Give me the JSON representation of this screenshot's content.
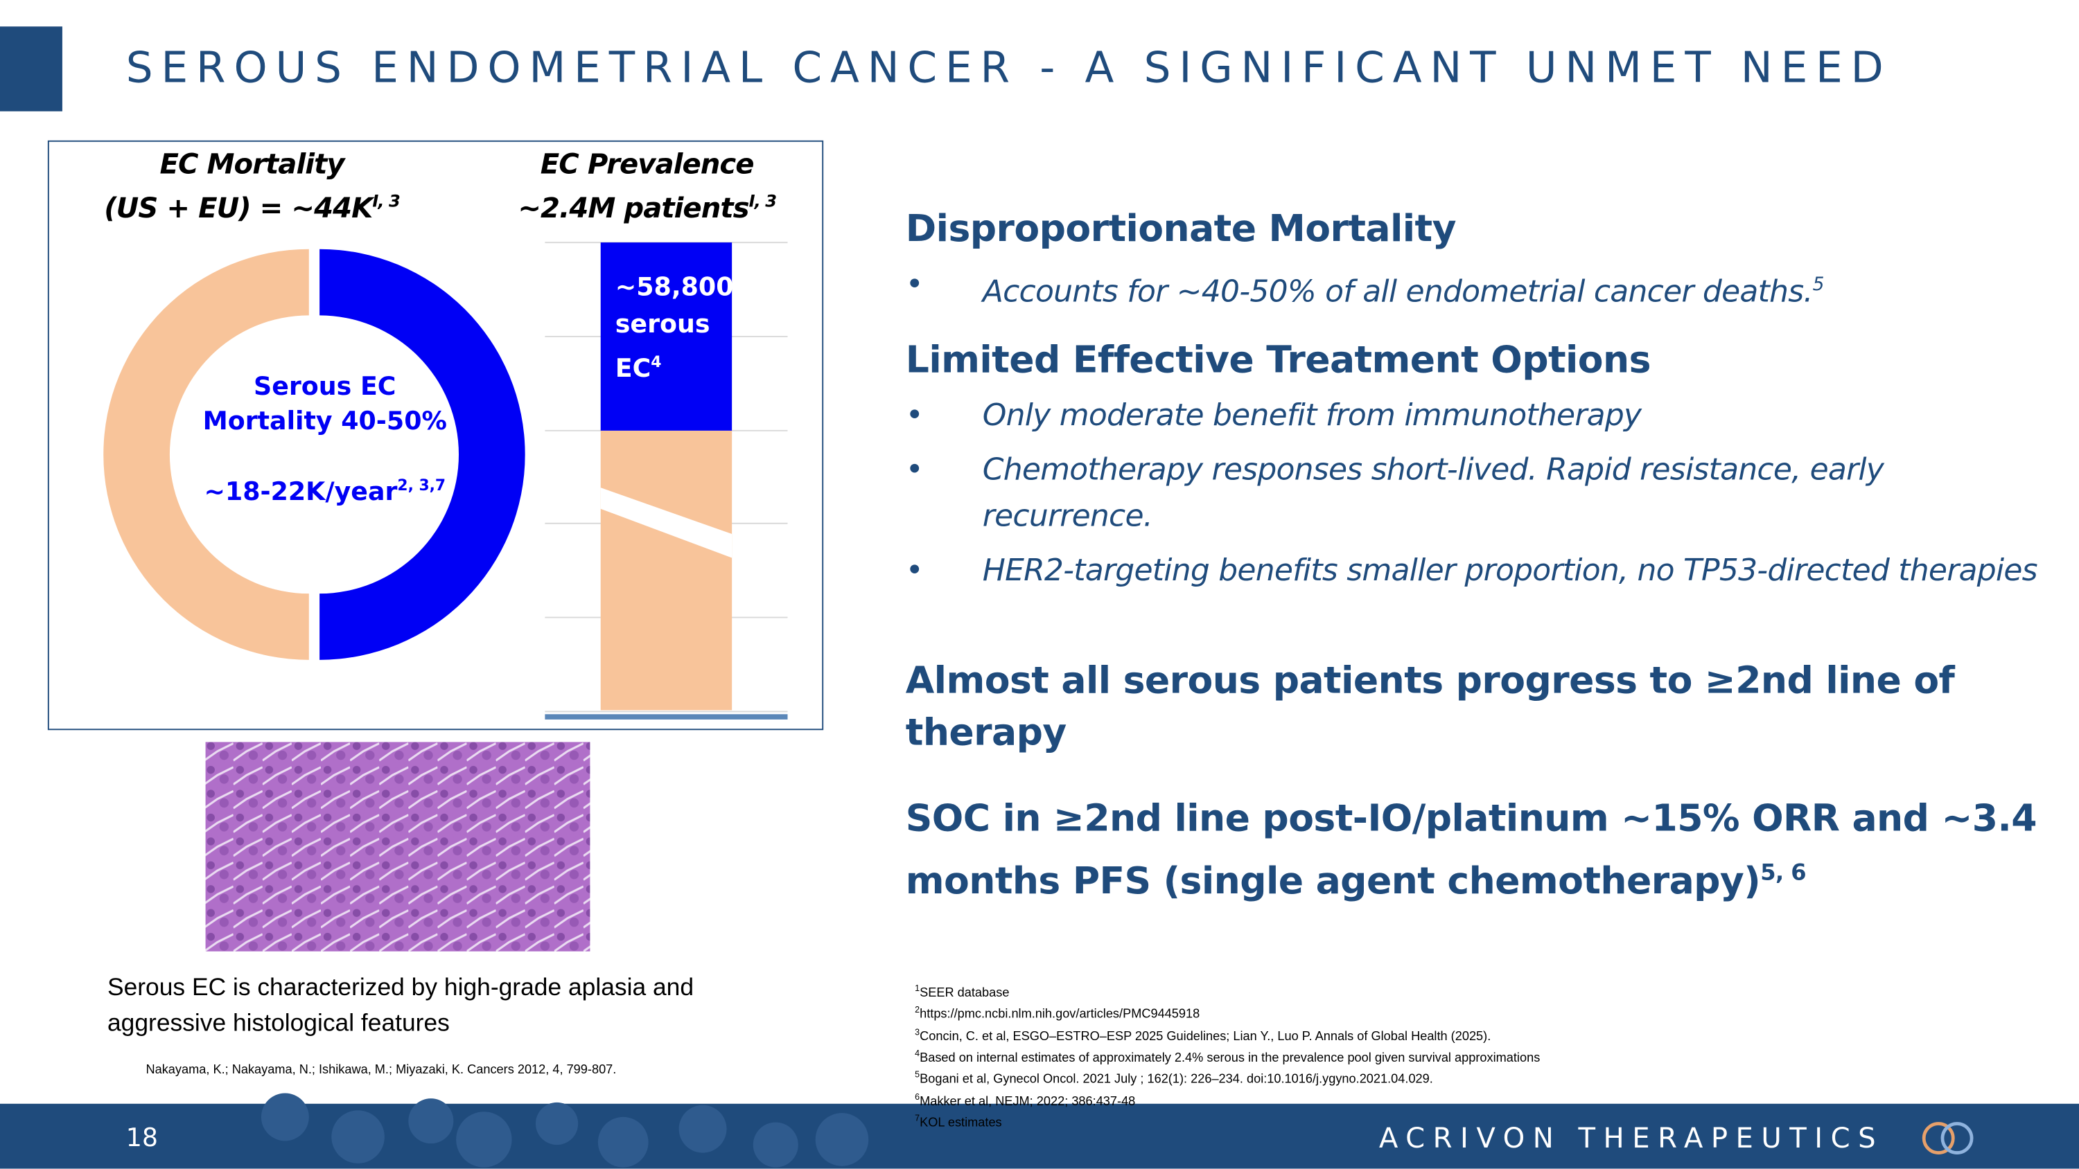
{
  "header": {
    "title": "SEROUS ENDOMETRIAL CANCER - A SIGNIFICANT UNMET NEED"
  },
  "left_panel": {
    "mortality": {
      "title": "EC Mortality",
      "subtitle": "(US + EU) = ~44K",
      "sup": "I, 3",
      "center_line1": "Serous EC",
      "center_line2": "Mortality 40-50%",
      "center_line3": "~18-22K/year",
      "center_sup": "2, 3,7"
    },
    "prevalence": {
      "title": "EC Prevalence",
      "subtitle": "~2.4M patients",
      "sup": "I, 3",
      "bar_line1": "~58,800",
      "bar_line2": "serous",
      "bar_line3": "EC",
      "bar_sup": "4"
    },
    "caption": "Serous EC is characterized by high-grade aplasia and aggressive histological features",
    "citation": "Nakayama, K.; Nakayama, N.; Ishikawa, M.; Miyazaki, K. Cancers 2012, 4, 799-807."
  },
  "right_panel": {
    "sections": [
      {
        "heading": "Disproportionate Mortality",
        "bullets": [
          {
            "text": "Accounts for ~40-50% of all endometrial cancer deaths.",
            "sup": "5"
          }
        ]
      },
      {
        "heading": "Limited Effective Treatment Options",
        "bullets": [
          {
            "text": "Only moderate benefit from immunotherapy"
          },
          {
            "text": "Chemotherapy responses short-lived. Rapid resistance, early recurrence."
          },
          {
            "text": "HER2-targeting benefits smaller proportion, no TP53-directed therapies"
          }
        ]
      }
    ],
    "statement1": "Almost all serous patients progress to ≥2nd line of therapy",
    "statement2": "SOC in ≥2nd line post-IO/platinum ~15% ORR and ~3.4 months PFS (single agent chemotherapy)",
    "statement2_sup": "5, 6"
  },
  "footnotes": [
    {
      "marker": "1",
      "text": "SEER database"
    },
    {
      "marker": "2",
      "text": "https://pmc.ncbi.nlm.nih.gov/articles/PMC9445918"
    },
    {
      "marker": "3",
      "text": "Concin, C. et al, ESGO–ESTRO–ESP 2025 Guidelines; Lian Y., Luo P. Annals of Global Health (2025)."
    },
    {
      "marker": "4",
      "text": "Based on internal estimates of approximately 2.4% serous in the prevalence pool given survival approximations"
    },
    {
      "marker": "5",
      "text": "Bogani et al, Gynecol Oncol. 2021 July ; 162(1): 226–234. doi:10.1016/j.ygyno.2021.04.029."
    },
    {
      "marker": "6",
      "text": "Makker et al, NEJM; 2022; 386:437-48"
    },
    {
      "marker": "7",
      "text": "KOL estimates"
    }
  ],
  "footer": {
    "page": "18",
    "company": "ACRIVON THERAPEUTICS"
  }
}
